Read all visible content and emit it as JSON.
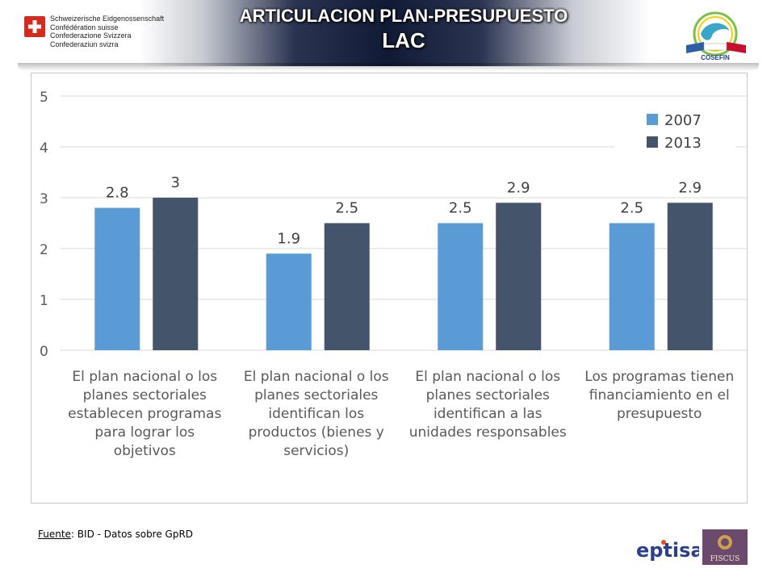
{
  "header": {
    "swiss_lines": [
      "Schweizerische Eidgenossenschaft",
      "Confédération suisse",
      "Confederazione Svizzera",
      "Confederaziun svizra"
    ],
    "title_line1": "ARTICULACION PLAN-PRESUPUESTO",
    "title_line2": "LAC",
    "partner_logo_text": "COSEFIN"
  },
  "chart_data": {
    "type": "bar",
    "title": "",
    "xlabel": "",
    "ylabel": "",
    "ylim": [
      0,
      5
    ],
    "yticks": [
      0,
      1,
      2,
      3,
      4,
      5
    ],
    "grid": true,
    "legend_position": "top-right",
    "categories": [
      "El plan nacional o los planes sectoriales establecen programas para lograr los objetivos",
      "El plan nacional o los planes sectoriales identifican los productos (bienes y servicios)",
      "El plan nacional o los planes sectoriales identifican a las unidades responsables",
      "Los programas tienen financiamiento en el presupuesto"
    ],
    "category_lines": [
      [
        "El plan nacional o los",
        "planes sectoriales",
        "establecen programas",
        "para lograr los",
        "objetivos"
      ],
      [
        "El plan nacional o los",
        "planes sectoriales",
        "identifican los",
        "productos (bienes y",
        "servicios)"
      ],
      [
        "El plan nacional o los",
        "planes sectoriales",
        "identifican a las",
        "unidades responsables"
      ],
      [
        "Los programas tienen",
        "financiamiento en el",
        "presupuesto"
      ]
    ],
    "series": [
      {
        "name": "2007",
        "color": "#5b9bd5",
        "values": [
          2.8,
          1.9,
          2.5,
          2.5
        ],
        "labels": [
          "2.8",
          "1.9",
          "2.5",
          "2.5"
        ]
      },
      {
        "name": "2013",
        "color": "#44546a",
        "values": [
          3,
          2.5,
          2.9,
          2.9
        ],
        "labels": [
          "3",
          "2.5",
          "2.9",
          "2.9"
        ]
      }
    ]
  },
  "footer": {
    "source_label": "Fuente",
    "source_text": ": BID - Datos sobre GpRD",
    "eptisa_logo_text": "eptisa",
    "fiscus_logo_text": "FISCUS"
  }
}
